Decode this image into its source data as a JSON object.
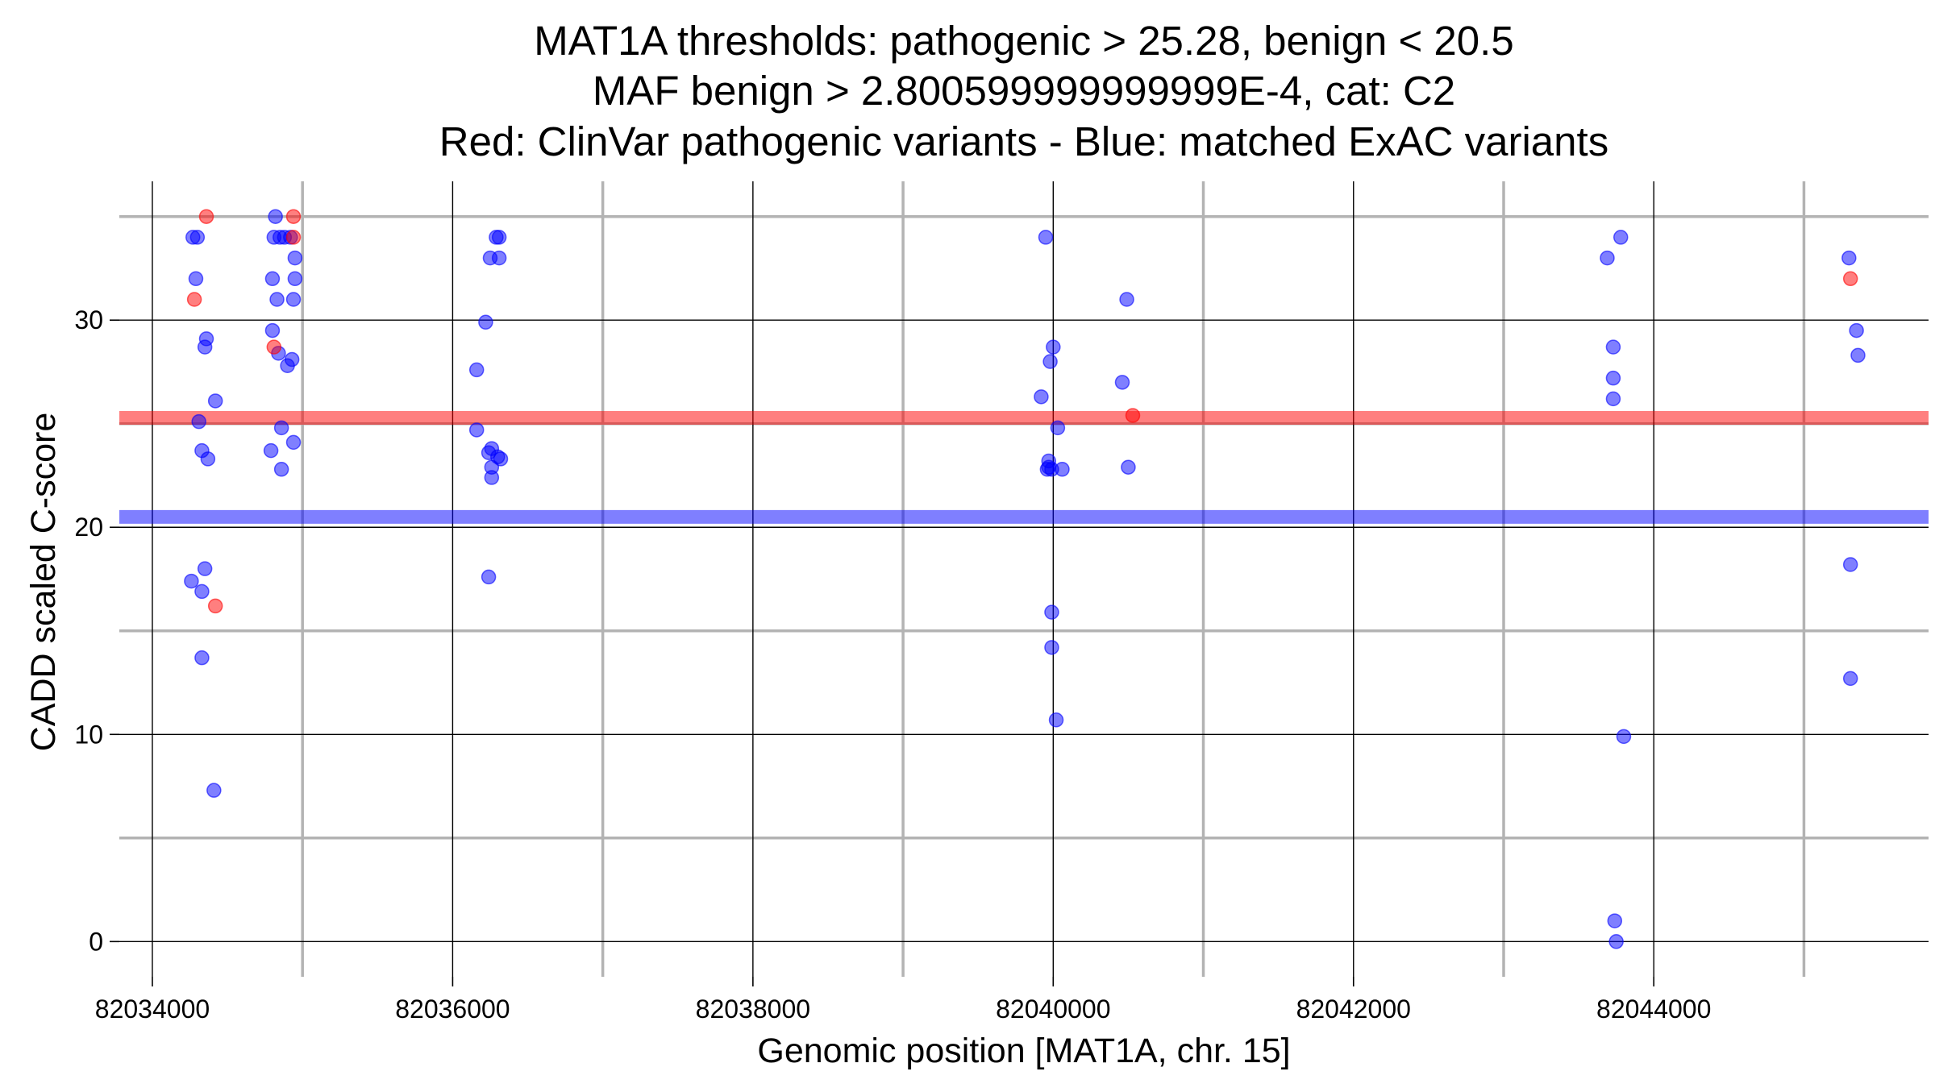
{
  "chart_data": {
    "type": "scatter",
    "title_lines": [
      "MAT1A thresholds: pathogenic > 25.28, benign < 20.5",
      "MAF benign > 2.800599999999999E-4, cat: C2",
      "Red: ClinVar pathogenic variants - Blue: matched ExAC variants"
    ],
    "xlabel": "Genomic position [MAT1A, chr. 15]",
    "ylabel": "CADD scaled C-score",
    "xlim": [
      82033780,
      82045830
    ],
    "ylim": [
      -1.7,
      36.7
    ],
    "x_ticks": [
      82034000,
      82036000,
      82038000,
      82040000,
      82042000,
      82044000
    ],
    "x_tick_labels": [
      "82034000",
      "82036000",
      "82038000",
      "82040000",
      "82042000",
      "82044000"
    ],
    "x_minor_ticks": [
      82035000,
      82037000,
      82039000,
      82041000,
      82043000,
      82045000
    ],
    "y_ticks": [
      0,
      10,
      20,
      30
    ],
    "y_tick_labels": [
      "0",
      "10",
      "20",
      "30"
    ],
    "y_minor_ticks": [
      5,
      15,
      25,
      35
    ],
    "grid": true,
    "thresholds": [
      {
        "name": "pathogenic",
        "value": 25.28,
        "color": "#ff0000"
      },
      {
        "name": "benign",
        "value": 20.5,
        "color": "#0000ff"
      }
    ],
    "series": [
      {
        "color": "#0000ff",
        "points": [
          [
            82034270,
            34
          ],
          [
            82034300,
            34
          ],
          [
            82034290,
            32
          ],
          [
            82034310,
            25.1
          ],
          [
            82034360,
            29.1
          ],
          [
            82034350,
            28.7
          ],
          [
            82034420,
            26.1
          ],
          [
            82034330,
            23.7
          ],
          [
            82034370,
            23.3
          ],
          [
            82034260,
            17.4
          ],
          [
            82034350,
            18
          ],
          [
            82034330,
            16.9
          ],
          [
            82034330,
            13.7
          ],
          [
            82034410,
            7.3
          ],
          [
            82034820,
            35
          ],
          [
            82034810,
            34
          ],
          [
            82034850,
            34
          ],
          [
            82034880,
            34
          ],
          [
            82034920,
            34
          ],
          [
            82034800,
            32
          ],
          [
            82034830,
            31
          ],
          [
            82034950,
            33
          ],
          [
            82034950,
            32
          ],
          [
            82034940,
            31
          ],
          [
            82034800,
            29.5
          ],
          [
            82034840,
            28.4
          ],
          [
            82034930,
            28.1
          ],
          [
            82034900,
            27.8
          ],
          [
            82034860,
            24.8
          ],
          [
            82034940,
            24.1
          ],
          [
            82034790,
            23.7
          ],
          [
            82034860,
            22.8
          ],
          [
            82036290,
            34
          ],
          [
            82036310,
            34
          ],
          [
            82036250,
            33
          ],
          [
            82036310,
            33
          ],
          [
            82036220,
            29.9
          ],
          [
            82036160,
            27.6
          ],
          [
            82036160,
            24.7
          ],
          [
            82036260,
            23.8
          ],
          [
            82036240,
            23.6
          ],
          [
            82036300,
            23.4
          ],
          [
            82036320,
            23.3
          ],
          [
            82036260,
            22.9
          ],
          [
            82036260,
            22.4
          ],
          [
            82036240,
            17.6
          ],
          [
            82039950,
            34
          ],
          [
            82040000,
            28.7
          ],
          [
            82039980,
            28
          ],
          [
            82039920,
            26.3
          ],
          [
            82040030,
            24.8
          ],
          [
            82039970,
            23.2
          ],
          [
            82039970,
            22.9
          ],
          [
            82039990,
            22.8
          ],
          [
            82039960,
            22.8
          ],
          [
            82040060,
            22.8
          ],
          [
            82040460,
            27
          ],
          [
            82040490,
            31
          ],
          [
            82040500,
            22.9
          ],
          [
            82039990,
            15.9
          ],
          [
            82039990,
            14.2
          ],
          [
            82040020,
            10.7
          ],
          [
            82043690,
            33
          ],
          [
            82043780,
            34
          ],
          [
            82043730,
            28.7
          ],
          [
            82043730,
            27.2
          ],
          [
            82043730,
            26.2
          ],
          [
            82043800,
            9.9
          ],
          [
            82043740,
            1
          ],
          [
            82043750,
            0
          ],
          [
            82045300,
            33
          ],
          [
            82045350,
            29.5
          ],
          [
            82045360,
            28.3
          ],
          [
            82045310,
            18.2
          ],
          [
            82045310,
            12.7
          ]
        ]
      },
      {
        "color": "#ff0000",
        "points": [
          [
            82034360,
            35
          ],
          [
            82034280,
            31
          ],
          [
            82034420,
            16.2
          ],
          [
            82034810,
            28.7
          ],
          [
            82034940,
            35
          ],
          [
            82034940,
            34
          ],
          [
            82040530,
            25.4
          ],
          [
            82045310,
            32
          ]
        ]
      }
    ]
  }
}
